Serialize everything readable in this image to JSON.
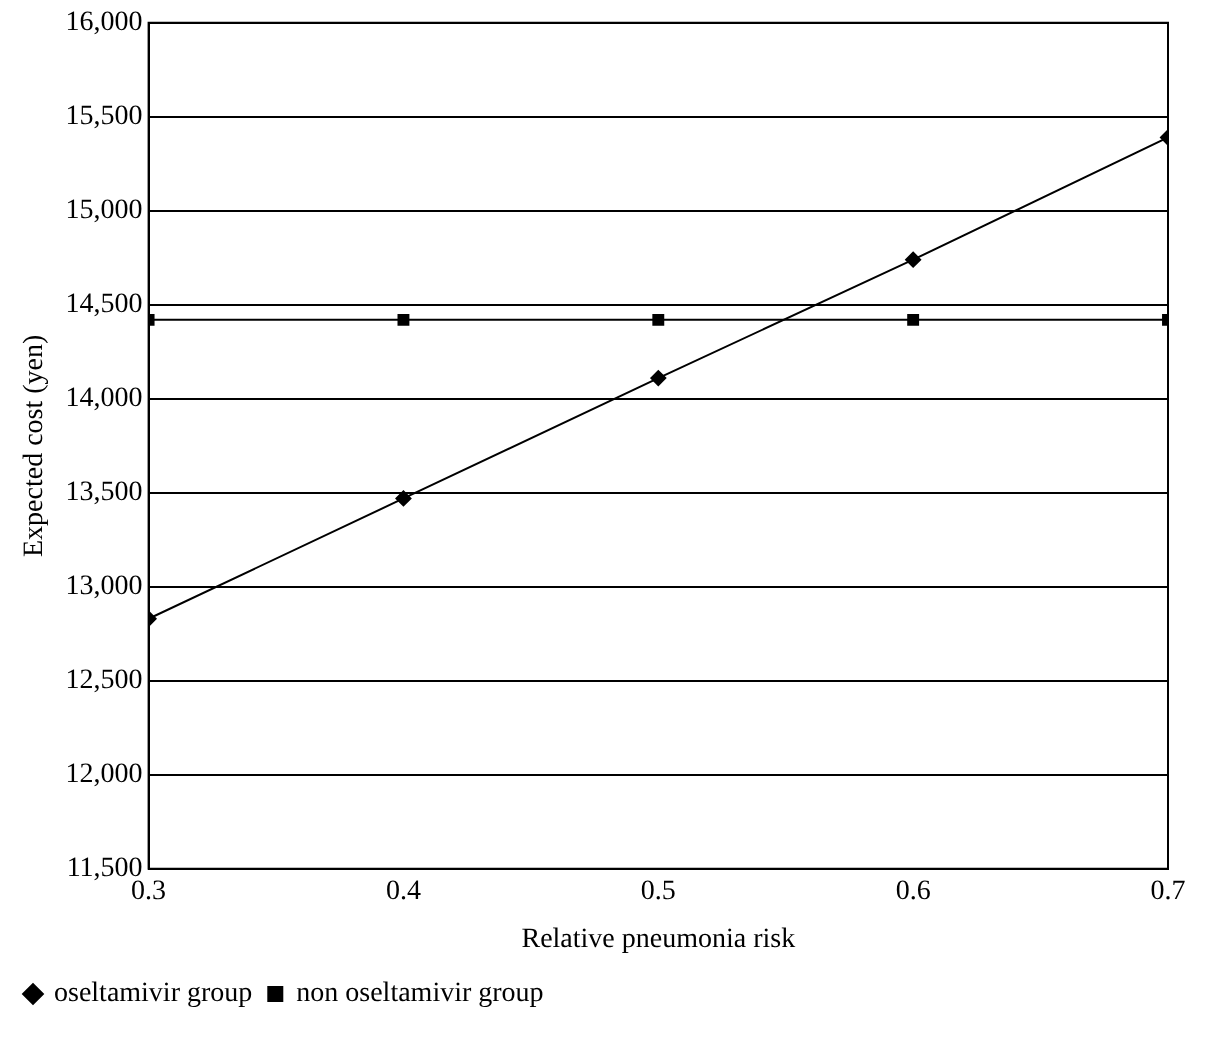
{
  "chart_data": {
    "type": "line",
    "xlabel": "Relative pneumonia risk",
    "ylabel": "Expected cost (yen)",
    "x": [
      0.3,
      0.4,
      0.5,
      0.6,
      0.7
    ],
    "series": [
      {
        "name": "oseltamivir group",
        "color": "#000000",
        "marker": "diamond",
        "values": [
          12830,
          13470,
          14110,
          14740,
          15390
        ]
      },
      {
        "name": "non oseltamivir group",
        "color": "#000000",
        "marker": "square",
        "values": [
          14420,
          14420,
          14420,
          14420,
          14420
        ]
      }
    ],
    "xlim": [
      0.3,
      0.7
    ],
    "xticks": [
      0.3,
      0.4,
      0.5,
      0.6,
      0.7
    ],
    "ylim": [
      11500,
      16000
    ],
    "yticks": [
      {
        "value": 11500,
        "label": "11,500"
      },
      {
        "value": 12000,
        "label": "12,000"
      },
      {
        "value": 12500,
        "label": "12,500"
      },
      {
        "value": 13000,
        "label": "13,000"
      },
      {
        "value": 13500,
        "label": "13,500"
      },
      {
        "value": 14000,
        "label": "14,000"
      },
      {
        "value": 14500,
        "label": "14,500"
      },
      {
        "value": 15000,
        "label": "15,000"
      },
      {
        "value": 15500,
        "label": "15,500"
      },
      {
        "value": 16000,
        "label": "16,000"
      }
    ],
    "grid": "y",
    "legend": "bottom left",
    "line_style": "solid"
  }
}
